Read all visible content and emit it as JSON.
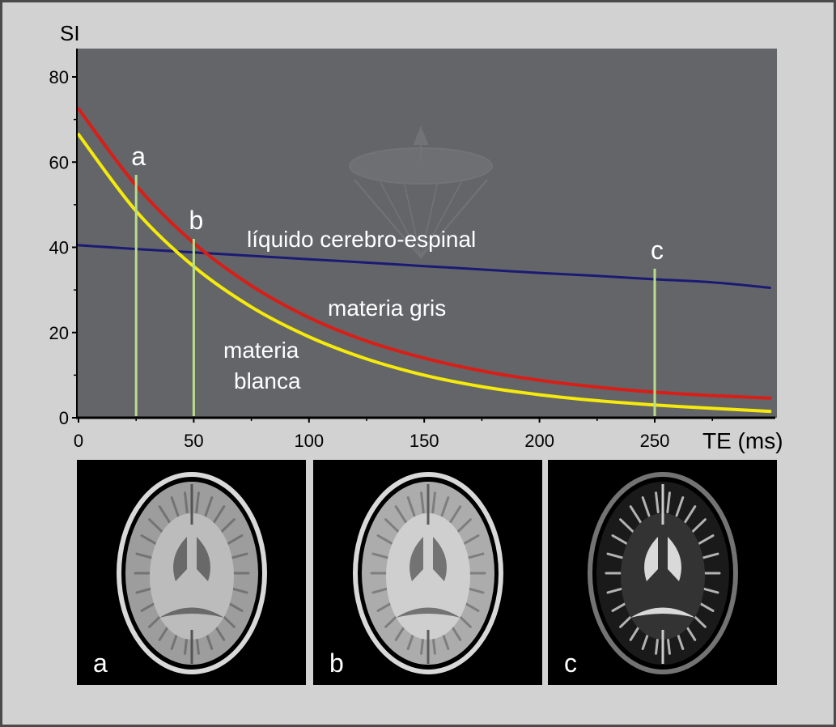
{
  "colors": {
    "plot_background": "#636569",
    "csf": "#1b1a73",
    "gray_matter": "#d81e17",
    "white_matter": "#f5ea0b",
    "te_markers": "#b9dd8b",
    "text_in_plot": "#ffffff",
    "axis_text": "#000000"
  },
  "chart_data": {
    "type": "line",
    "ylabel": "SI",
    "xlabel": "TE (ms)",
    "xlim": [
      0,
      300
    ],
    "ylim": [
      0,
      85
    ],
    "xticks": [
      0,
      50,
      100,
      150,
      200,
      250
    ],
    "yticks": [
      0,
      20,
      40,
      60,
      80
    ],
    "grid": false,
    "series": [
      {
        "name": "líquido cerebro-espinal",
        "color": "#1b1a73",
        "x": [
          0,
          25,
          50,
          75,
          100,
          125,
          150,
          175,
          200,
          225,
          250,
          275,
          300
        ],
        "y": [
          40.5,
          39.6,
          38.8,
          38.0,
          37.2,
          36.4,
          35.6,
          34.8,
          34.0,
          33.3,
          32.5,
          31.8,
          30.5
        ]
      },
      {
        "name": "materia gris",
        "color": "#d81e17",
        "x": [
          0,
          25,
          50,
          75,
          100,
          125,
          150,
          175,
          200,
          225,
          250,
          275,
          300
        ],
        "y": [
          72.5,
          54.5,
          41.0,
          31.0,
          23.5,
          18.0,
          14.0,
          11.0,
          8.8,
          7.2,
          6.0,
          5.2,
          4.6
        ]
      },
      {
        "name": "materia blanca",
        "color": "#f5ea0b",
        "x": [
          0,
          25,
          50,
          75,
          100,
          125,
          150,
          175,
          200,
          225,
          250,
          275,
          300
        ],
        "y": [
          66.5,
          48.5,
          35.5,
          26.0,
          19.0,
          13.8,
          10.0,
          7.3,
          5.4,
          4.0,
          3.0,
          2.2,
          1.5
        ]
      }
    ],
    "markers": [
      {
        "label": "a",
        "x": 25,
        "y_top": 57
      },
      {
        "label": "b",
        "x": 50,
        "y_top": 42
      },
      {
        "label": "c",
        "x": 250,
        "y_top": 35
      }
    ],
    "annotations": {
      "csf_label": "líquido cerebro-espinal",
      "gray_label": "materia gris",
      "white_label_line1": "materia",
      "white_label_line2": "blanca"
    }
  },
  "panels": [
    {
      "label": "a",
      "description": "brain MRI at TE a",
      "brightness": 0.82,
      "csf_bright": false
    },
    {
      "label": "b",
      "description": "brain MRI at TE b",
      "brightness": 0.9,
      "csf_bright": false
    },
    {
      "label": "c",
      "description": "brain MRI at TE c",
      "brightness": 0.35,
      "csf_bright": true
    }
  ]
}
